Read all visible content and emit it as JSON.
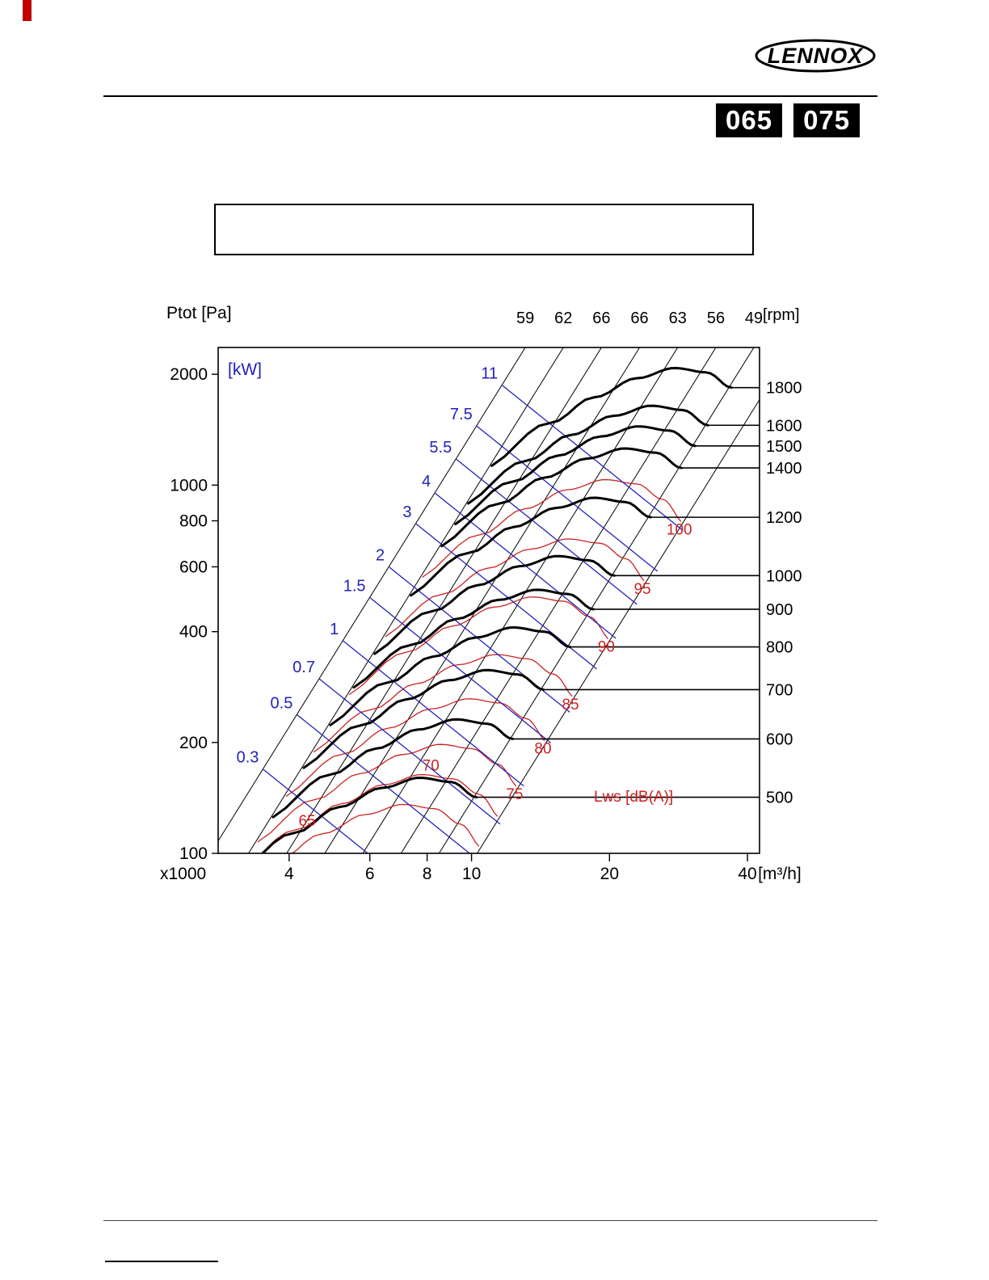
{
  "brand": {
    "logo_text": "LENNOX"
  },
  "header": {
    "model_badges": [
      "065",
      "075"
    ]
  },
  "title_box": {
    "text": ""
  },
  "chart_data": {
    "type": "line",
    "description": "Fan performance curves: total pressure vs airflow with constant-speed curves, constant shaft power lines and constant sound power lines",
    "pressure_axis": {
      "label": "Ptot [Pa]",
      "scale": "log",
      "ticks": [
        2000,
        1000,
        800,
        600,
        400,
        200,
        100
      ],
      "range": [
        100,
        2365
      ]
    },
    "flow_axis": {
      "label": "x1000",
      "unit": "[m³/h]",
      "scale": "log",
      "ticks": [
        4,
        6,
        8,
        10,
        20,
        40
      ],
      "range": [
        2.8,
        42.5
      ]
    },
    "speed_axis": {
      "unit": "[rpm]",
      "side": "right"
    },
    "fan_speed_curves_rpm": [
      500,
      600,
      700,
      800,
      900,
      1000,
      1200,
      1400,
      1500,
      1600,
      1800
    ],
    "fan_law_reference": {
      "rpm": 1000,
      "max_flow_x1000m3h": 20.5,
      "pressure_at_max_flow_pa": 568
    },
    "curve_shape_t_g": [
      [
        0.28,
        0.6
      ],
      [
        0.4,
        0.8
      ],
      [
        0.5,
        0.94
      ],
      [
        0.62,
        1.06
      ],
      [
        0.75,
        1.13
      ],
      [
        0.88,
        1.1
      ],
      [
        1.0,
        1.0
      ],
      [
        1.12,
        0.86
      ]
    ],
    "top_scale_values": [
      59,
      62,
      66,
      66,
      63,
      56,
      49
    ],
    "system_lines_k": [
      13.78,
      9.4,
      6.41,
      4.37,
      2.98,
      2.03,
      1.386,
      0.945
    ],
    "power_curves_kw": {
      "label": "[kW]",
      "values": [
        0.3,
        0.5,
        0.7,
        1,
        1.5,
        2,
        3,
        4,
        5.5,
        7.5,
        11
      ],
      "pressure_flow_coefficient": 1980,
      "color": "#2222bb"
    },
    "sound_curves_dba": {
      "label": "Lws [dB(A)]",
      "color": "#cc2222",
      "levels": [
        {
          "db": 65,
          "eq_rpm": 460,
          "label_t": 0.52
        },
        {
          "db": 70,
          "eq_rpm": 505,
          "label_t": 0.82
        },
        {
          "db": 75,
          "eq_rpm": 555,
          "label_t": 1.1
        },
        {
          "db": 80,
          "eq_rpm": 640,
          "label_t": 1.1
        },
        {
          "db": 85,
          "eq_rpm": 735,
          "label_t": 1.1
        },
        {
          "db": 90,
          "eq_rpm": 880,
          "label_t": 1.1
        },
        {
          "db": 95,
          "eq_rpm": 1055,
          "label_t": 1.1
        },
        {
          "db": 100,
          "eq_rpm": 1270,
          "label_t": 1.1
        }
      ]
    }
  }
}
